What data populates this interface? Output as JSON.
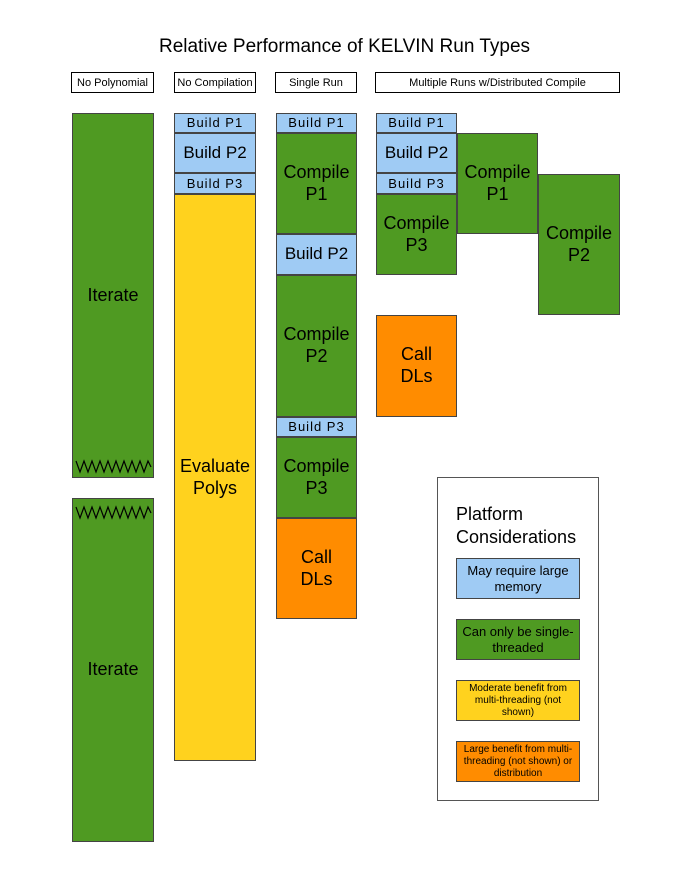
{
  "title": "Relative Performance of KELVIN Run Types",
  "columns": {
    "no_polynomial": "No Polynomial",
    "no_compilation": "No Compilation",
    "single_run": "Single Run",
    "multiple_runs": "Multiple Runs w/Distributed Compile"
  },
  "no_polynomial": {
    "iterate_top": "Iterate",
    "iterate_bottom": "Iterate"
  },
  "no_compilation": {
    "build_p1": "Build P1",
    "build_p2": "Build P2",
    "build_p3": "Build P3",
    "evaluate": "Evaluate Polys"
  },
  "single_run": {
    "build_p1": "Build P1",
    "compile_p1": "Compile P1",
    "build_p2": "Build P2",
    "compile_p2": "Compile P2",
    "build_p3": "Build P3",
    "compile_p3": "Compile P3",
    "call_dls": "Call DLs"
  },
  "multiple_runs": {
    "build_p1": "Build P1",
    "build_p2": "Build P2",
    "build_p3": "Build P3",
    "compile_p1": "Compile P1",
    "compile_p2": "Compile P2",
    "compile_p3": "Compile P3",
    "call_dls": "Call DLs"
  },
  "legend": {
    "title": "Platform Considerations",
    "memory": "May require large memory",
    "single_thread": "Can only be single-threaded",
    "moderate": "Moderate  benefit from multi-threading (not shown)",
    "large": "Large  benefit from multi-threading (not shown) or distribution"
  },
  "colors": {
    "green": "#4f9a22",
    "blue": "#9fcbf4",
    "yellow": "#ffd21e",
    "orange": "#ff8c00"
  }
}
